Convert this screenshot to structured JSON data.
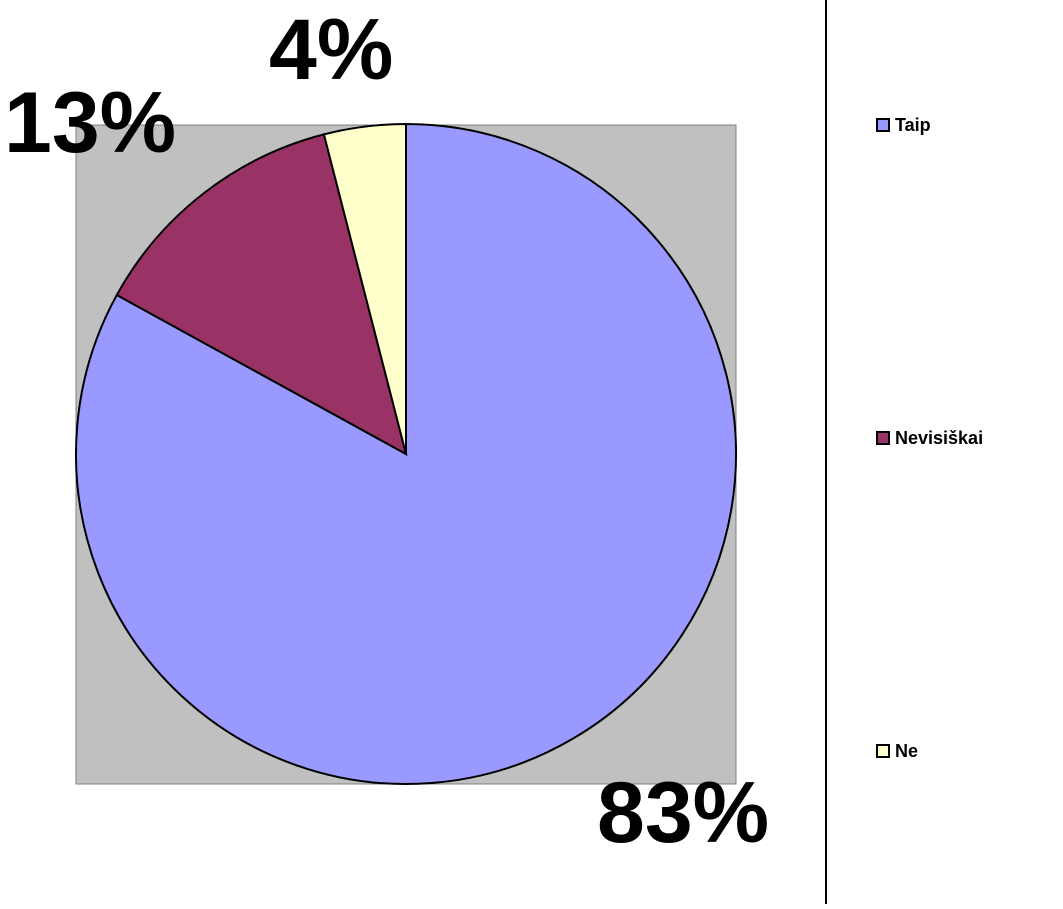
{
  "chart_data": {
    "type": "pie",
    "categories": [
      "Taip",
      "Nevisiškai",
      "Ne"
    ],
    "values": [
      83,
      13,
      4
    ],
    "data_labels": [
      "83%",
      "13%",
      "4%"
    ],
    "colors": [
      "#9999ff",
      "#993366",
      "#ffffcc"
    ],
    "legend": {
      "placement": "right",
      "entries": [
        "Taip",
        "Nevisiškai",
        "Ne"
      ]
    },
    "start_angle": "12 o'clock",
    "direction": "clockwise",
    "plot_background": "#c0c0c0"
  }
}
